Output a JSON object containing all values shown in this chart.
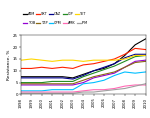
{
  "years": [
    1998,
    1999,
    2000,
    2001,
    2002,
    2003,
    2004,
    2005,
    2006,
    2007,
    2008,
    2009,
    2010
  ],
  "series": {
    "ATM": {
      "color": "#000000",
      "linewidth": 0.8,
      "values": [
        7.5,
        7.5,
        7.5,
        7.5,
        7.5,
        7.0,
        8.5,
        10.0,
        11.0,
        13.0,
        16.5,
        21.0,
        23.5
      ]
    },
    "SXT": {
      "color": "#ff2200",
      "linewidth": 0.8,
      "values": [
        11.0,
        11.0,
        11.5,
        11.0,
        11.5,
        11.0,
        12.5,
        13.0,
        14.0,
        15.0,
        17.0,
        19.5,
        19.0
      ]
    },
    "CAZ": {
      "color": "#00008b",
      "linewidth": 0.8,
      "values": [
        7.0,
        7.0,
        7.0,
        7.0,
        7.0,
        6.5,
        8.0,
        10.0,
        11.5,
        13.0,
        15.5,
        17.0,
        17.0
      ]
    },
    "CIP": {
      "color": "#228B22",
      "linewidth": 0.8,
      "values": [
        5.0,
        5.0,
        5.0,
        5.5,
        5.5,
        5.5,
        7.5,
        9.0,
        10.5,
        12.0,
        14.0,
        16.0,
        16.5
      ]
    },
    "TET": {
      "color": "#FFD700",
      "linewidth": 0.8,
      "values": [
        14.5,
        15.0,
        14.5,
        14.0,
        14.5,
        14.5,
        14.0,
        14.5,
        14.5,
        14.5,
        15.0,
        16.5,
        16.5
      ]
    },
    "TOB": {
      "color": "#9400D3",
      "linewidth": 0.8,
      "values": [
        4.0,
        4.0,
        4.0,
        4.0,
        4.0,
        4.0,
        5.0,
        7.0,
        8.0,
        9.0,
        11.5,
        14.0,
        14.5
      ]
    },
    "TZP": {
      "color": "#8B6914",
      "linewidth": 0.8,
      "values": [
        4.5,
        4.5,
        4.5,
        4.5,
        4.5,
        4.5,
        6.0,
        7.5,
        8.5,
        9.5,
        11.5,
        13.5,
        14.0
      ]
    },
    "CPM": {
      "color": "#00BFFF",
      "linewidth": 0.8,
      "values": [
        1.5,
        1.5,
        1.5,
        2.0,
        2.0,
        2.0,
        4.5,
        5.0,
        6.0,
        8.0,
        9.5,
        9.0,
        9.5
      ]
    },
    "AMK": {
      "color": "#FF69B4",
      "linewidth": 0.8,
      "values": [
        1.0,
        1.0,
        1.0,
        1.0,
        1.0,
        1.0,
        1.5,
        2.0,
        2.0,
        2.5,
        3.5,
        4.0,
        4.0
      ]
    },
    "IPM": {
      "color": "#A0A0A0",
      "linewidth": 0.8,
      "values": [
        0.5,
        0.5,
        0.5,
        0.5,
        0.5,
        0.5,
        1.0,
        1.0,
        1.5,
        2.0,
        2.5,
        3.5,
        4.5
      ]
    }
  },
  "xlim": [
    1998,
    2010
  ],
  "ylim": [
    0,
    25
  ],
  "yticks": [
    0,
    5,
    10,
    15,
    20,
    25
  ],
  "ylabel": "Resistance, %",
  "legend_row1": [
    "ATM",
    "SXT",
    "CAZ",
    "CIP",
    "TET"
  ],
  "legend_row2": [
    "TOB",
    "TZP",
    "CPM",
    "AMK",
    "IPM"
  ]
}
